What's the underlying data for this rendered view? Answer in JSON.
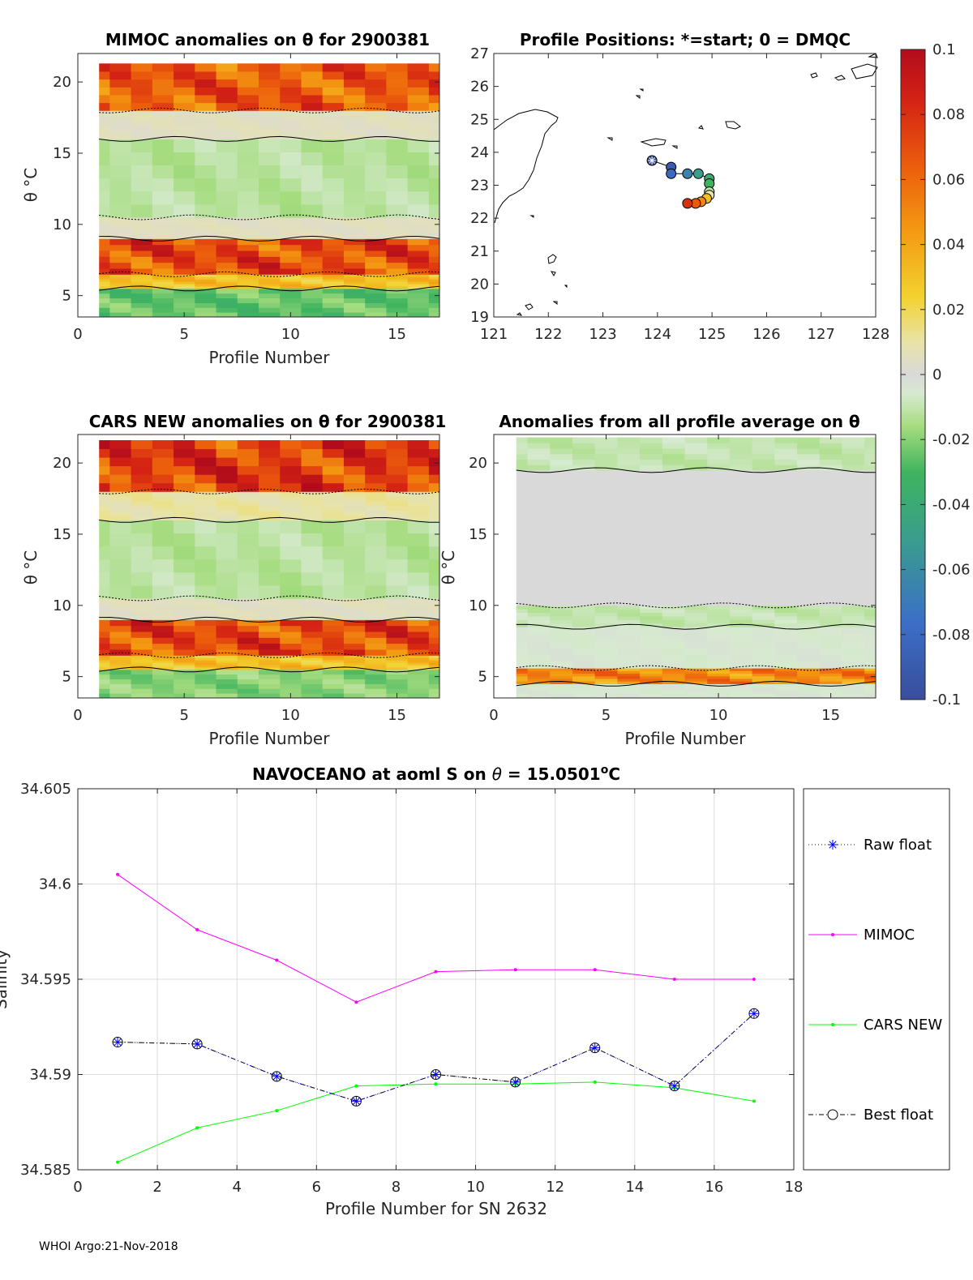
{
  "chart_data": [
    {
      "id": "mimoc",
      "type": "heatmap",
      "title": "MIMOC anomalies on θ  for 2900381",
      "xlabel": "Profile Number",
      "ylabel": "θ °C",
      "xlim": [
        0,
        17
      ],
      "ylim": [
        3.5,
        22
      ],
      "xticks": [
        "0",
        "5",
        "10",
        "15"
      ],
      "yticks": [
        "5",
        "10",
        "15",
        "20"
      ],
      "profiles": [
        1,
        17
      ],
      "theta_bands": [
        {
          "theta": [
            3.5,
            5.5
          ],
          "anomaly": -0.025
        },
        {
          "theta": [
            5.5,
            6.5
          ],
          "anomaly": 0.03
        },
        {
          "theta": [
            6.5,
            9.0
          ],
          "anomaly": 0.07
        },
        {
          "theta": [
            9.0,
            10.5
          ],
          "anomaly": 0.005
        },
        {
          "theta": [
            10.5,
            16.0
          ],
          "anomaly": -0.012
        },
        {
          "theta": [
            16.0,
            18.0
          ],
          "anomaly": 0.005
        },
        {
          "theta": [
            18.0,
            21.3
          ],
          "anomaly": 0.065
        }
      ]
    },
    {
      "id": "positions",
      "type": "scatter",
      "title": "Profile Positions: *=start; 0 = DMQC",
      "xlim": [
        121,
        128
      ],
      "ylim": [
        19,
        27
      ],
      "xticks": [
        "121",
        "122",
        "123",
        "124",
        "125",
        "126",
        "127",
        "128"
      ],
      "yticks": [
        "19",
        "20",
        "21",
        "22",
        "23",
        "24",
        "25",
        "26",
        "27"
      ],
      "points": [
        {
          "lon": 123.9,
          "lat": 23.75,
          "c": -0.1
        },
        {
          "lon": 124.25,
          "lat": 23.55,
          "c": -0.09
        },
        {
          "lon": 124.25,
          "lat": 23.35,
          "c": -0.08
        },
        {
          "lon": 124.55,
          "lat": 23.35,
          "c": -0.065
        },
        {
          "lon": 124.75,
          "lat": 23.35,
          "c": -0.05
        },
        {
          "lon": 124.95,
          "lat": 23.2,
          "c": -0.04
        },
        {
          "lon": 124.95,
          "lat": 23.05,
          "c": -0.03
        },
        {
          "lon": 124.95,
          "lat": 22.8,
          "c": -0.01
        },
        {
          "lon": 124.95,
          "lat": 22.7,
          "c": 0.01
        },
        {
          "lon": 124.9,
          "lat": 22.6,
          "c": 0.03
        },
        {
          "lon": 124.8,
          "lat": 22.5,
          "c": 0.05
        },
        {
          "lon": 124.7,
          "lat": 22.45,
          "c": 0.065
        },
        {
          "lon": 124.55,
          "lat": 22.45,
          "c": 0.08
        }
      ]
    },
    {
      "id": "cars",
      "type": "heatmap",
      "title": "CARS NEW anomalies on θ for 2900381",
      "xlabel": "Profile Number",
      "ylabel": "θ °C",
      "xlim": [
        0,
        17
      ],
      "ylim": [
        3.5,
        22
      ],
      "xticks": [
        "0",
        "5",
        "10",
        "15"
      ],
      "yticks": [
        "5",
        "10",
        "15",
        "20"
      ],
      "profiles": [
        1,
        17
      ],
      "theta_bands": [
        {
          "theta": [
            3.5,
            5.5
          ],
          "anomaly": -0.02
        },
        {
          "theta": [
            5.5,
            6.5
          ],
          "anomaly": 0.03
        },
        {
          "theta": [
            6.5,
            9.0
          ],
          "anomaly": 0.07
        },
        {
          "theta": [
            9.0,
            10.5
          ],
          "anomaly": 0.005
        },
        {
          "theta": [
            10.5,
            16.0
          ],
          "anomaly": -0.012
        },
        {
          "theta": [
            16.0,
            18.0
          ],
          "anomaly": 0.01
        },
        {
          "theta": [
            18.0,
            21.6
          ],
          "anomaly": 0.075
        }
      ]
    },
    {
      "id": "allavg",
      "type": "heatmap",
      "title": "Anomalies from all profile average on θ",
      "xlabel": "Profile Number",
      "ylabel": "θ °C",
      "xlim": [
        0,
        17
      ],
      "ylim": [
        3.5,
        22
      ],
      "xticks": [
        "0",
        "5",
        "10",
        "15"
      ],
      "yticks": [
        "5",
        "10",
        "15",
        "20"
      ],
      "profiles": [
        1,
        17
      ],
      "theta_bands": [
        {
          "theta": [
            3.5,
            4.5
          ],
          "anomaly": -0.005
        },
        {
          "theta": [
            4.5,
            5.6
          ],
          "anomaly": 0.05
        },
        {
          "theta": [
            5.6,
            8.5
          ],
          "anomaly": -0.005
        },
        {
          "theta": [
            8.5,
            10.0
          ],
          "anomaly": -0.01
        },
        {
          "theta": [
            10.0,
            19.5
          ],
          "anomaly": 0.0
        },
        {
          "theta": [
            19.5,
            21.8
          ],
          "anomaly": -0.01
        }
      ]
    },
    {
      "id": "colorbar",
      "type": "heatmap",
      "title": "",
      "range": [
        -0.1,
        0.1
      ],
      "ticks": [
        "0.1",
        "0.08",
        "0.06",
        "0.04",
        "0.02",
        "0",
        "-0.02",
        "-0.04",
        "-0.06",
        "-0.08",
        "-0.1"
      ]
    },
    {
      "id": "salinity",
      "type": "line",
      "title": "NAVOCEANO at aoml S on θ = 15.0501°C",
      "title_parts": [
        "NAVOCEANO at aoml S on ",
        "θ",
        " = 15.0501",
        "o",
        "C"
      ],
      "xlabel": "Profile Number for SN 2632",
      "ylabel": "Salinity",
      "xlim": [
        0,
        18
      ],
      "ylim": [
        34.585,
        34.605
      ],
      "xticks": [
        "0",
        "2",
        "4",
        "6",
        "8",
        "10",
        "12",
        "14",
        "16",
        "18"
      ],
      "yticks": [
        "34.585",
        "34.59",
        "34.595",
        "34.6",
        "34.605"
      ],
      "grid": true,
      "legend_position": "outside-right",
      "x": [
        1,
        3,
        5,
        7,
        9,
        11,
        13,
        15,
        17
      ],
      "series": [
        {
          "name": "Raw float",
          "color": "#0000ff",
          "values": [
            34.5917,
            34.5916,
            34.5899,
            34.5886,
            34.59,
            34.5896,
            34.5914,
            34.5894,
            34.5932
          ]
        },
        {
          "name": "MIMOC",
          "color": "#ff00ff",
          "values": [
            34.6005,
            34.5976,
            34.596,
            34.5938,
            34.5954,
            34.5955,
            34.5955,
            34.595,
            34.595
          ]
        },
        {
          "name": "CARS NEW",
          "color": "#00ff00",
          "values": [
            34.5854,
            34.5872,
            34.5881,
            34.5894,
            34.5895,
            34.5895,
            34.5896,
            34.5893,
            34.5886
          ]
        },
        {
          "name": "Best float",
          "color": "#000000",
          "values": [
            34.5917,
            34.5916,
            34.5899,
            34.5886,
            34.59,
            34.5896,
            34.5914,
            34.5894,
            34.5932
          ]
        }
      ]
    }
  ],
  "footer": "WHOI Argo:21-Nov-2018"
}
